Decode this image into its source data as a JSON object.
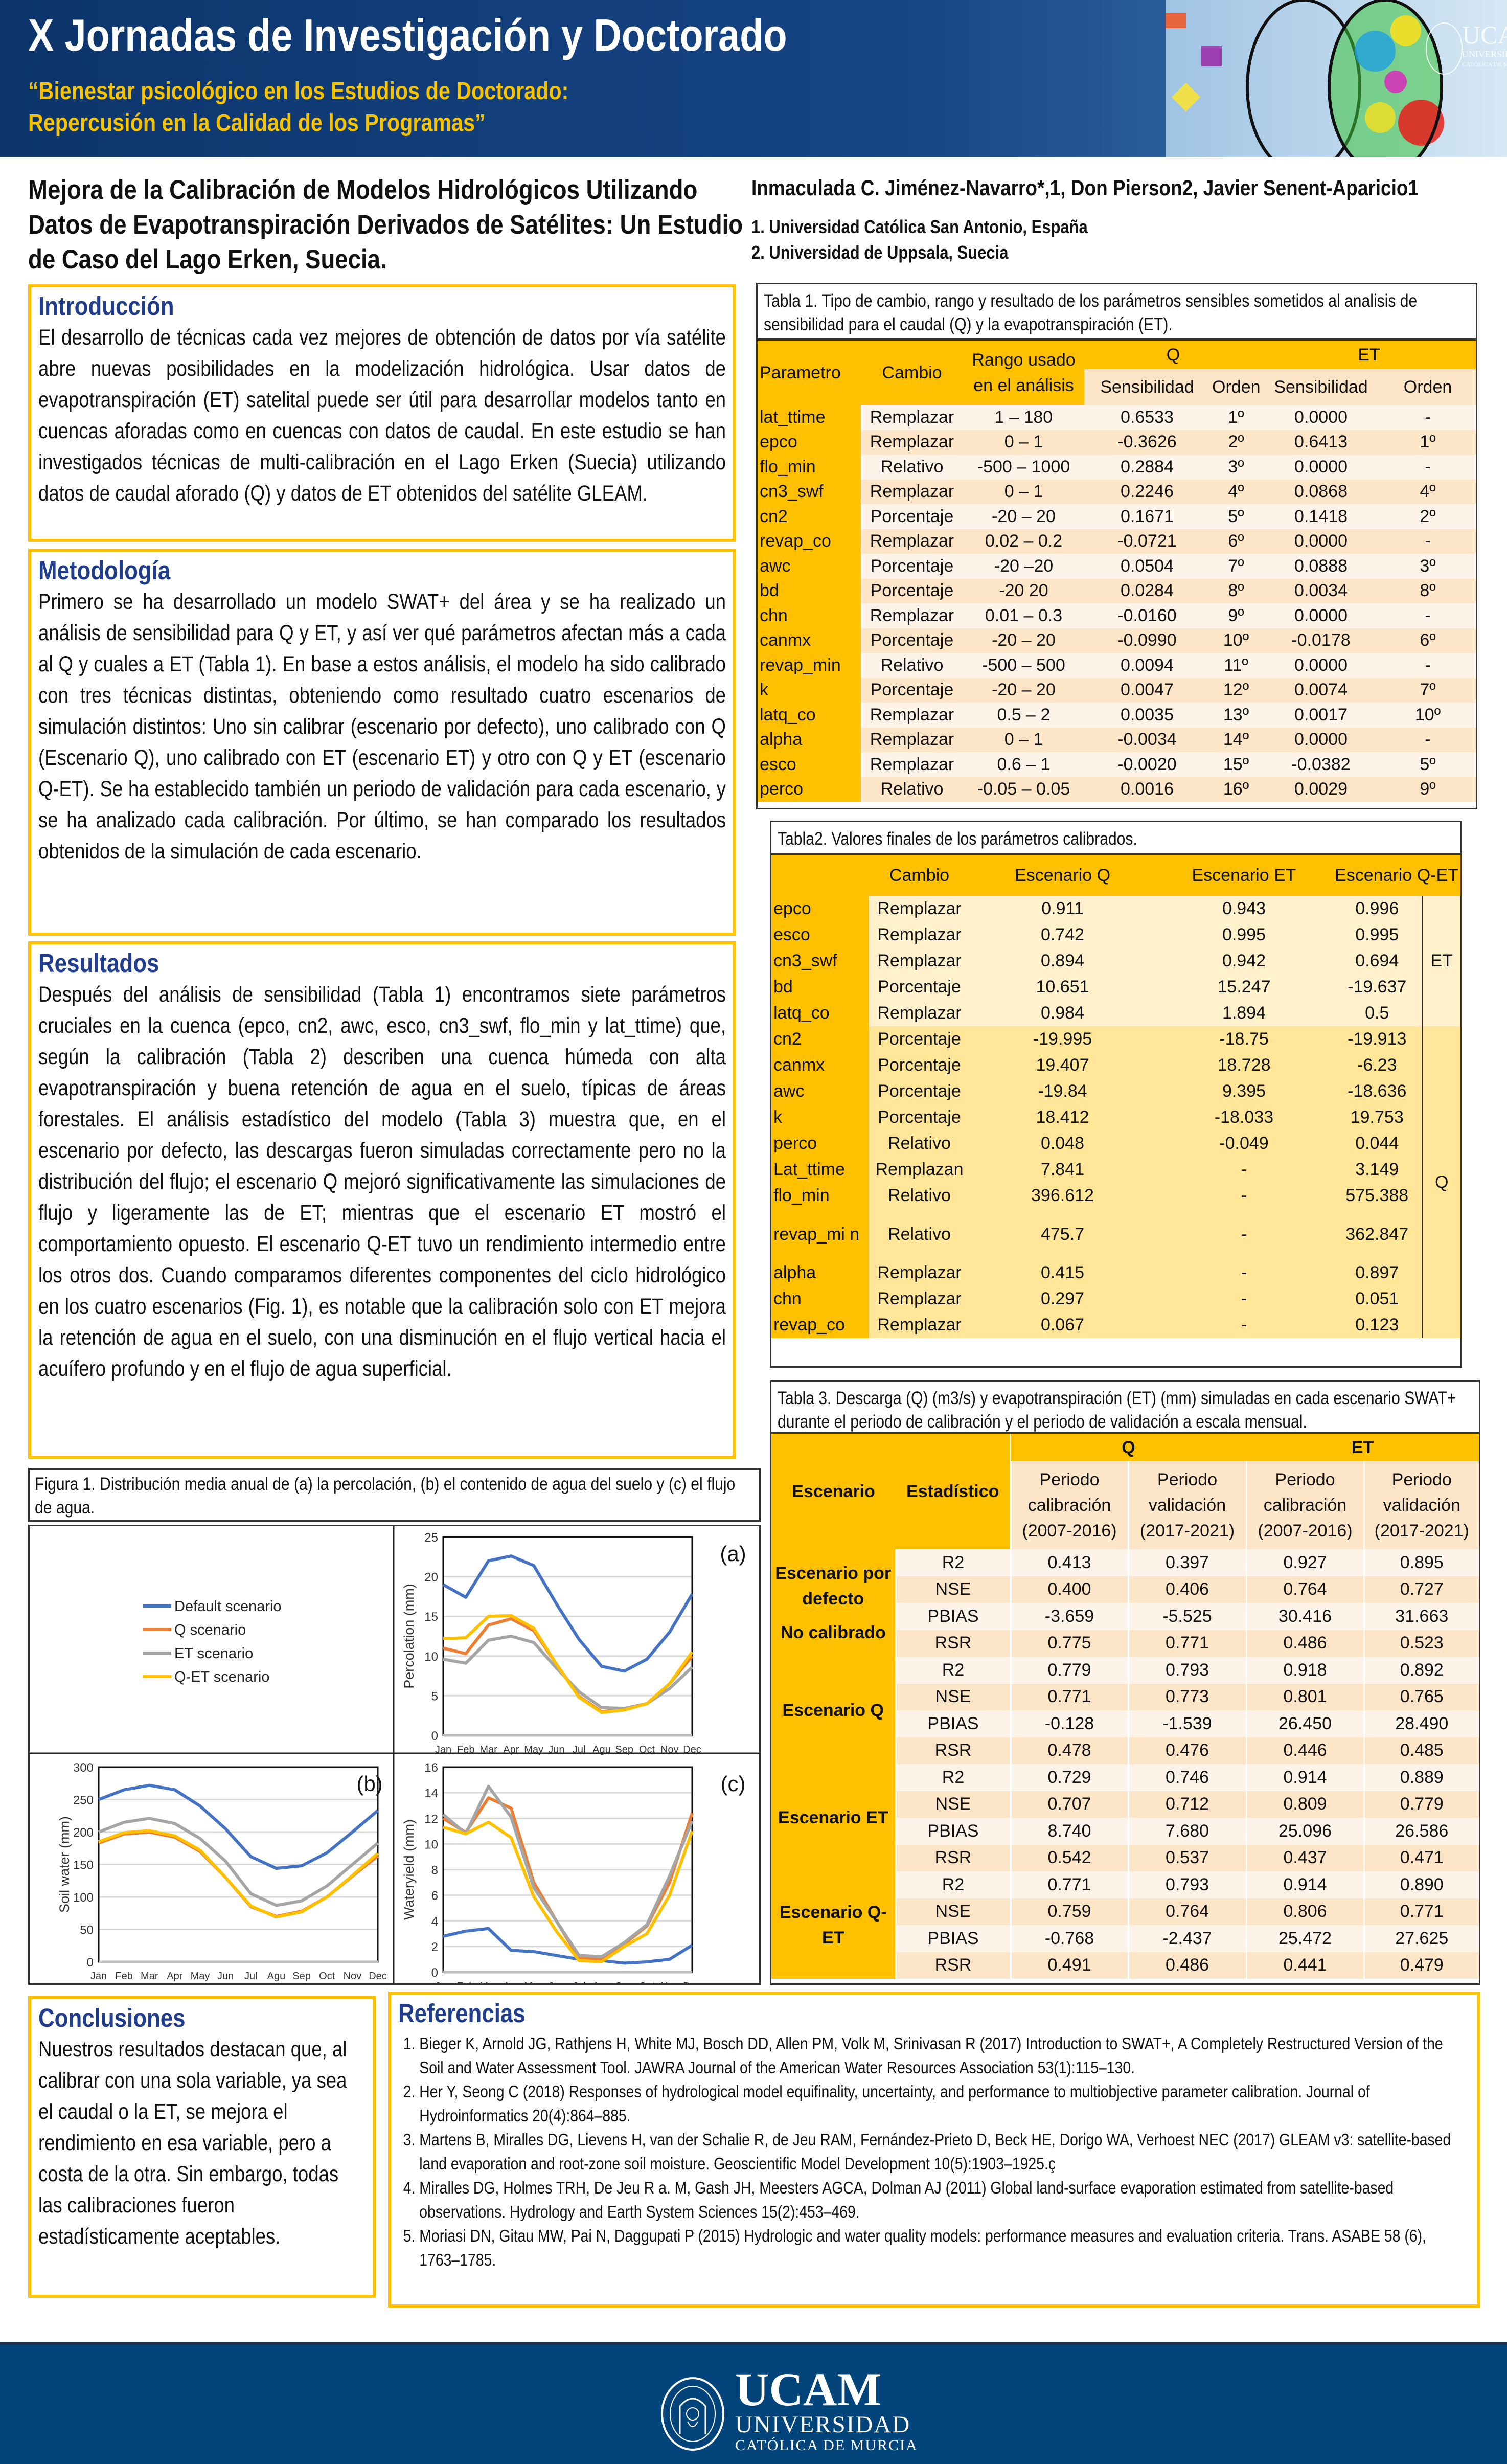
{
  "header": {
    "title": "X Jornadas de Investigación y Doctorado",
    "subtitle_line1": "“Bienestar psicológico en los Estudios de Doctorado:",
    "subtitle_line2": "Repercusión en la Calidad de los Programas”",
    "image_logo_text": "UCAM UNIVERSIDAD CATÓLICA DE MURCIA"
  },
  "paper": {
    "title": "Mejora de la Calibración de Modelos Hidrológicos Utilizando Datos de Evapotranspiración Derivados de Satélites: Un Estudio de Caso del Lago Erken, Suecia.",
    "authors": "Inmaculada C. Jiménez-Navarro*,1, Don Pierson2, Javier Senent-Aparicio1",
    "affiliation1": "1. Universidad Católica San Antonio, España",
    "affiliation2": "2. Universidad de Uppsala, Suecia"
  },
  "intro": {
    "heading": "Introducción",
    "text": "El desarrollo de técnicas cada vez mejores de obtención de datos por vía satélite abre nuevas posibilidades en la modelización hidrológica. Usar datos de evapotranspiración (ET) satelital puede ser útil para desarrollar modelos tanto en cuencas aforadas como en cuencas con datos de caudal. En este estudio se han investigados técnicas de multi-calibración en el Lago Erken (Suecia) utilizando datos de caudal aforado (Q) y datos de ET obtenidos del satélite GLEAM."
  },
  "methods": {
    "heading": "Metodología",
    "text": "Primero se ha desarrollado un modelo SWAT+ del área y se ha realizado un análisis de sensibilidad para Q y ET, y así ver qué parámetros afectan más a cada al Q y cuales a ET (Tabla 1). En base a estos análisis, el modelo ha sido calibrado con tres técnicas distintas, obteniendo como resultado cuatro escenarios de simulación distintos: Uno sin calibrar (escenario por defecto), uno calibrado con Q (Escenario Q), uno calibrado con ET (escenario ET) y otro con Q y ET (escenario Q-ET). Se ha establecido también un periodo de validación para cada escenario, y se ha analizado cada calibración. Por último, se han comparado los resultados obtenidos de la simulación de cada escenario."
  },
  "results": {
    "heading": "Resultados",
    "text": "Después del análisis de sensibilidad (Tabla 1) encontramos siete parámetros cruciales en la cuenca (epco, cn2, awc, esco, cn3_swf, flo_min y lat_ttime) que, según la calibración (Tabla 2) describen una cuenca húmeda con alta evapotranspiración y buena retención de agua en el suelo, típicas de áreas forestales. El análisis estadístico del modelo (Tabla 3) muestra que, en el escenario por defecto, las descargas fueron simuladas correctamente pero no la distribución del flujo; el escenario Q mejoró significativamente las simulaciones de flujo y ligeramente las de ET; mientras que el escenario ET mostró el comportamiento opuesto. El escenario Q-ET tuvo un rendimiento intermedio entre los otros dos. Cuando comparamos diferentes componentes del ciclo hidrológico en los cuatro escenarios (Fig. 1), es notable que la calibración solo con ET mejora la retención de agua en el suelo, con una disminución en el flujo vertical hacia el acuífero profundo y en el flujo de agua superficial."
  },
  "conclusions": {
    "heading": "Conclusiones",
    "text": "Nuestros resultados destacan que, al calibrar con una sola variable, ya sea el caudal o la ET, se mejora el rendimiento en esa variable, pero a costa de la otra. Sin embargo, todas las calibraciones fueron estadísticamente aceptables."
  },
  "references": {
    "heading": "Referencias",
    "items": [
      "Bieger K, Arnold JG, Rathjens H, White MJ, Bosch DD, Allen PM, Volk M, Srinivasan R (2017) Introduction to SWAT+, A Completely Restructured Version of the Soil and Water Assessment Tool. JAWRA Journal of the American Water Resources Association 53(1):115–130.",
      "Her Y, Seong C (2018) Responses of hydrological model equifinality, uncertainty, and performance to multiobjective parameter calibration. Journal of Hydroinformatics 20(4):864–885.",
      "Martens B, Miralles DG, Lievens H, van der Schalie R, de Jeu RAM, Fernández-Prieto D, Beck HE, Dorigo WA, Verhoest NEC (2017) GLEAM v3: satellite-based land evaporation and root-zone soil moisture. Geoscientific Model Development 10(5):1903–1925.ç",
      "Miralles DG, Holmes TRH, De Jeu R a. M, Gash JH, Meesters AGCA, Dolman AJ (2011) Global land-surface evaporation estimated from satellite-based observations. Hydrology and Earth System Sciences 15(2):453–469.",
      "Moriasi DN, Gitau MW, Pai N, Daggupati P (2015) Hydrologic and water quality models: performance measures and evaluation criteria. Trans. ASABE 58 (6), 1763–1785."
    ]
  },
  "table1": {
    "caption": "Tabla 1. Tipo de cambio, rango y resultado de los parámetros sensibles sometidos al analisis de sensibilidad para el caudal (Q) y la evapotranspiración (ET).",
    "headers": {
      "parametro": "Parametro",
      "cambio": "Cambio",
      "rango": "Rango usado en el análisis",
      "q": "Q",
      "et": "ET",
      "sens": "Sensibilidad",
      "orden": "Orden"
    },
    "rows": [
      [
        "lat_ttime",
        "Remplazar",
        "1 – 180",
        "0.6533",
        "1º",
        "0.0000",
        "-"
      ],
      [
        "epco",
        "Remplazar",
        "0 – 1",
        "-0.3626",
        "2º",
        "0.6413",
        "1º"
      ],
      [
        "flo_min",
        "Relativo",
        "-500 – 1000",
        "0.2884",
        "3º",
        "0.0000",
        "-"
      ],
      [
        "cn3_swf",
        "Remplazar",
        "0 – 1",
        "0.2246",
        "4º",
        "0.0868",
        "4º"
      ],
      [
        "cn2",
        "Porcentaje",
        "-20 – 20",
        "0.1671",
        "5º",
        "0.1418",
        "2º"
      ],
      [
        "revap_co",
        "Remplazar",
        "0.02 – 0.2",
        "-0.0721",
        "6º",
        "0.0000",
        "-"
      ],
      [
        "awc",
        "Porcentaje",
        "-20 –20",
        "0.0504",
        "7º",
        "0.0888",
        "3º"
      ],
      [
        "bd",
        "Porcentaje",
        "-20 20",
        "0.0284",
        "8º",
        "0.0034",
        "8º"
      ],
      [
        "chn",
        "Remplazar",
        "0.01 – 0.3",
        "-0.0160",
        "9º",
        "0.0000",
        "-"
      ],
      [
        "canmx",
        "Porcentaje",
        "-20 – 20",
        "-0.0990",
        "10º",
        "-0.0178",
        "6º"
      ],
      [
        "revap_min",
        "Relativo",
        "-500 – 500",
        "0.0094",
        "11º",
        "0.0000",
        "-"
      ],
      [
        "k",
        "Porcentaje",
        "-20 – 20",
        "0.0047",
        "12º",
        "0.0074",
        "7º"
      ],
      [
        "latq_co",
        "Remplazar",
        "0.5 – 2",
        "0.0035",
        "13º",
        "0.0017",
        "10º"
      ],
      [
        "alpha",
        "Remplazar",
        "0 – 1",
        "-0.0034",
        "14º",
        "0.0000",
        "-"
      ],
      [
        "esco",
        "Remplazar",
        "0.6 – 1",
        "-0.0020",
        "15º",
        "-0.0382",
        "5º"
      ],
      [
        "perco",
        "Relativo",
        "-0.05 – 0.05",
        "0.0016",
        "16º",
        "0.0029",
        "9º"
      ]
    ]
  },
  "table2": {
    "caption": "Tabla2. Valores finales de los parámetros calibrados.",
    "headers": [
      "",
      "Cambio",
      "Escenario Q",
      "Escenario ET",
      "Escenario Q-ET"
    ],
    "groups": [
      {
        "label": "ET",
        "rows": [
          [
            "epco",
            "Remplazar",
            "0.911",
            "0.943",
            "0.996"
          ],
          [
            "esco",
            "Remplazar",
            "0.742",
            "0.995",
            "0.995"
          ],
          [
            "cn3_swf",
            "Remplazar",
            "0.894",
            "0.942",
            "0.694"
          ],
          [
            "bd",
            "Porcentaje",
            "10.651",
            "15.247",
            "-19.637"
          ],
          [
            "latq_co",
            "Remplazar",
            "0.984",
            "1.894",
            "0.5"
          ]
        ]
      },
      {
        "label": "Q",
        "rows": [
          [
            "cn2",
            "Porcentaje",
            "-19.995",
            "-18.75",
            "-19.913"
          ],
          [
            "canmx",
            "Porcentaje",
            "19.407",
            "18.728",
            "-6.23"
          ],
          [
            "awc",
            "Porcentaje",
            "-19.84",
            "9.395",
            "-18.636"
          ],
          [
            "k",
            "Porcentaje",
            "18.412",
            "-18.033",
            "19.753"
          ],
          [
            "perco",
            "Relativo",
            "0.048",
            "-0.049",
            "0.044"
          ],
          [
            "Lat_ttime",
            "Remplazan",
            "7.841",
            "-",
            "3.149"
          ],
          [
            "flo_min",
            "Relativo",
            "396.612",
            "-",
            "575.388"
          ],
          [
            "revap_min",
            "Relativo",
            "475.7",
            "-",
            "362.847"
          ],
          [
            "alpha",
            "Remplazar",
            "0.415",
            "-",
            "0.897"
          ],
          [
            "chn",
            "Remplazar",
            "0.297",
            "-",
            "0.051"
          ],
          [
            "revap_co",
            "Remplazar",
            "0.067",
            "-",
            "0.123"
          ]
        ]
      }
    ]
  },
  "table3": {
    "caption": "Tabla 3. Descarga (Q) (m3/s) y evapotranspiración (ET) (mm) simuladas en cada escenario SWAT+ durante el periodo de calibración y el periodo de validación a escala mensual.",
    "headers": {
      "escenario": "Escenario",
      "estadistico": "Estadístico",
      "q": "Q",
      "et": "ET",
      "periods": [
        "Periodo calibración (2007-2016)",
        "Periodo validación (2017-2021)",
        "Periodo calibración (2007-2016)",
        "Periodo validación (2017-2021)"
      ]
    },
    "groups": [
      {
        "label": "Escenario por defecto",
        "sublabel": "No calibrado",
        "rows": [
          [
            "R2",
            "0.413",
            "0.397",
            "0.927",
            "0.895"
          ],
          [
            "NSE",
            "0.400",
            "0.406",
            "0.764",
            "0.727"
          ],
          [
            "PBIAS",
            "-3.659",
            "-5.525",
            "30.416",
            "31.663"
          ],
          [
            "RSR",
            "0.775",
            "0.771",
            "0.486",
            "0.523"
          ]
        ]
      },
      {
        "label": "Escenario Q",
        "sublabel": "",
        "rows": [
          [
            "R2",
            "0.779",
            "0.793",
            "0.918",
            "0.892"
          ],
          [
            "NSE",
            "0.771",
            "0.773",
            "0.801",
            "0.765"
          ],
          [
            "PBIAS",
            "-0.128",
            "-1.539",
            "26.450",
            "28.490"
          ],
          [
            "RSR",
            "0.478",
            "0.476",
            "0.446",
            "0.485"
          ]
        ]
      },
      {
        "label": "Escenario ET",
        "sublabel": "",
        "rows": [
          [
            "R2",
            "0.729",
            "0.746",
            "0.914",
            "0.889"
          ],
          [
            "NSE",
            "0.707",
            "0.712",
            "0.809",
            "0.779"
          ],
          [
            "PBIAS",
            "8.740",
            "7.680",
            "25.096",
            "26.586"
          ],
          [
            "RSR",
            "0.542",
            "0.537",
            "0.437",
            "0.471"
          ]
        ]
      },
      {
        "label": "Escenario Q-ET",
        "sublabel": "",
        "rows": [
          [
            "R2",
            "0.771",
            "0.793",
            "0.914",
            "0.890"
          ],
          [
            "NSE",
            "0.759",
            "0.764",
            "0.806",
            "0.771"
          ],
          [
            "PBIAS",
            "-0.768",
            "-2.437",
            "25.472",
            "27.625"
          ],
          [
            "RSR",
            "0.491",
            "0.486",
            "0.441",
            "0.479"
          ]
        ]
      }
    ]
  },
  "figure1": {
    "caption": "Figura 1. Distribución media anual de (a) la percolación, (b) el contenido de agua del suelo y (c) el flujo de agua.",
    "legend": [
      {
        "name": "Default scenario",
        "color": "#4472c4"
      },
      {
        "name": "Q scenario",
        "color": "#ed7d31"
      },
      {
        "name": "ET scenario",
        "color": "#a5a5a5"
      },
      {
        "name": "Q-ET scenario",
        "color": "#ffc000"
      }
    ]
  },
  "chart_data": [
    {
      "type": "line",
      "panel_label": "(a)",
      "ylabel": "Percolation (mm)",
      "categories": [
        "Jan",
        "Feb",
        "Mar",
        "Apr",
        "May",
        "Jun",
        "Jul",
        "Agu",
        "Sep",
        "Oct",
        "Nov",
        "Dec"
      ],
      "ylim": [
        0,
        25
      ],
      "yticks": [
        0,
        5,
        10,
        15,
        20,
        25
      ],
      "grid": true,
      "series": [
        {
          "name": "Default scenario",
          "values": [
            19.0,
            17.4,
            22.0,
            22.6,
            21.4,
            16.6,
            12.1,
            8.7,
            8.1,
            9.6,
            13.0,
            17.8
          ]
        },
        {
          "name": "Q scenario",
          "values": [
            11.0,
            10.3,
            13.9,
            14.7,
            13.2,
            9.0,
            4.9,
            3.0,
            3.3,
            4.0,
            6.5,
            10.0
          ]
        },
        {
          "name": "ET scenario",
          "values": [
            9.6,
            9.1,
            12.0,
            12.5,
            11.7,
            8.5,
            5.5,
            3.5,
            3.4,
            4.0,
            5.9,
            8.6
          ]
        },
        {
          "name": "Q-ET scenario",
          "values": [
            12.2,
            12.3,
            15.0,
            15.1,
            13.5,
            9.0,
            4.8,
            2.9,
            3.2,
            4.0,
            6.5,
            10.5
          ]
        }
      ]
    },
    {
      "type": "line",
      "panel_label": "(b)",
      "ylabel": "Soil water (mm)",
      "categories": [
        "Jan",
        "Feb",
        "Mar",
        "Apr",
        "May",
        "Jun",
        "Jul",
        "Agu",
        "Sep",
        "Oct",
        "Nov",
        "Dec"
      ],
      "ylim": [
        0,
        300
      ],
      "yticks": [
        0,
        50,
        100,
        150,
        200,
        250,
        300
      ],
      "grid": true,
      "series": [
        {
          "name": "Default scenario",
          "values": [
            250,
            265,
            272,
            265,
            240,
            205,
            162,
            144,
            148,
            168,
            200,
            233
          ]
        },
        {
          "name": "Q scenario",
          "values": [
            183,
            197,
            200,
            192,
            170,
            130,
            85,
            70,
            78,
            100,
            132,
            163
          ]
        },
        {
          "name": "ET scenario",
          "values": [
            200,
            215,
            221,
            213,
            190,
            155,
            105,
            87,
            94,
            117,
            150,
            183
          ]
        },
        {
          "name": "Q-ET scenario",
          "values": [
            185,
            199,
            202,
            194,
            172,
            130,
            86,
            69,
            77,
            100,
            133,
            167
          ]
        }
      ]
    },
    {
      "type": "line",
      "panel_label": "(c)",
      "ylabel": "Wateryield (mm)",
      "categories": [
        "Jan",
        "Feb",
        "Mar",
        "Apr",
        "May",
        "Jun",
        "Jul",
        "Agu",
        "Sep",
        "Oct",
        "Nov",
        "Dec"
      ],
      "ylim": [
        0,
        16
      ],
      "yticks": [
        0,
        2,
        4,
        6,
        8,
        10,
        12,
        14,
        16
      ],
      "grid": true,
      "series": [
        {
          "name": "Default scenario",
          "values": [
            2.8,
            3.2,
            3.4,
            1.7,
            1.6,
            1.3,
            1.0,
            0.9,
            0.7,
            0.8,
            1.0,
            2.1
          ]
        },
        {
          "name": "Q scenario",
          "values": [
            12.0,
            10.9,
            13.6,
            12.8,
            7.0,
            4.0,
            1.1,
            1.0,
            2.2,
            3.6,
            7.0,
            12.4
          ]
        },
        {
          "name": "ET scenario",
          "values": [
            12.3,
            10.8,
            14.5,
            12.1,
            6.6,
            4.0,
            1.3,
            1.2,
            2.3,
            3.7,
            7.5,
            11.8
          ]
        },
        {
          "name": "Q-ET scenario",
          "values": [
            11.3,
            10.8,
            11.7,
            10.5,
            5.9,
            3.2,
            0.9,
            0.8,
            2.0,
            3.0,
            6.0,
            11.0
          ]
        }
      ]
    }
  ],
  "footer": {
    "logo_main": "UCAM",
    "logo_line2": "UNIVERSIDAD",
    "logo_line3": "CATÓLICA DE MURCIA",
    "seal_text": "UNIVERSIDAD CATÓLICA SAN ANTONIO"
  },
  "colors": {
    "header_bg": "#164585",
    "accent": "#ffc000",
    "heading": "#1f3d8c",
    "footer_bg": "#03457a"
  }
}
